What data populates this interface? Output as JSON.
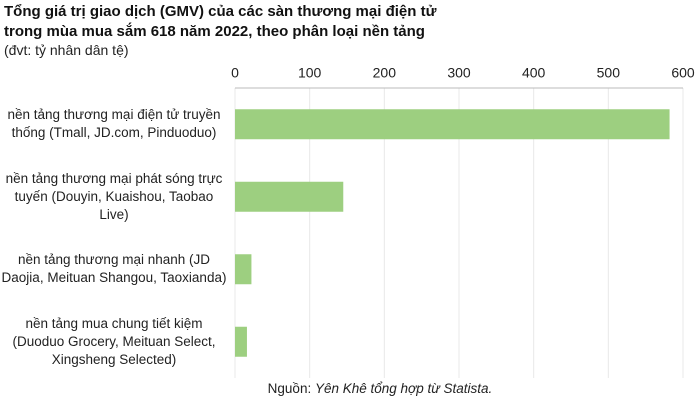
{
  "chart_data": {
    "type": "bar",
    "orientation": "horizontal",
    "title": "Tổng giá trị giao dịch (GMV) của các sàn thương mại điện tử trong mùa mua sắm 618 năm 2022, theo phân loại nền tảng",
    "subtitle": "(đvt: tỷ nhân dân tệ)",
    "categories": [
      "nền tảng thương mại điện tử truyền thống (Tmall, JD.com, Pinduoduo)",
      "nền tảng thương mại phát sóng trực tuyến (Douyin, Kuaishou, Taobao Live)",
      "nền tảng thương mại nhanh (JD Daojia, Meituan Shangou, Taoxianda)",
      "nền tảng mua chung tiết kiệm (Duoduo Grocery, Meituan Select, Xingsheng Selected)"
    ],
    "values": [
      582,
      145,
      22,
      16
    ],
    "color": "#9dcf80",
    "xlim": [
      0,
      600
    ],
    "xticks": [
      0,
      100,
      200,
      300,
      400,
      500,
      600
    ],
    "grid": true,
    "source_label": "Nguồn:",
    "source": "Yên Khê tổng hợp từ Statista."
  }
}
